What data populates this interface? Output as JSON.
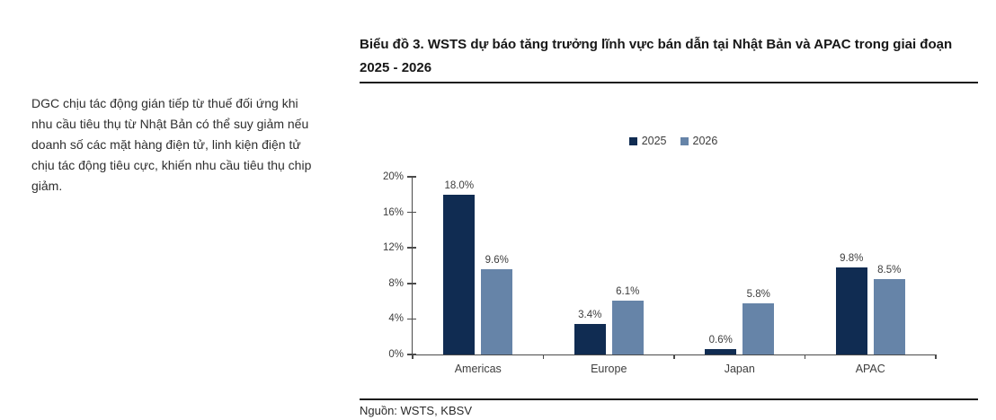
{
  "page": {
    "background": "#ffffff"
  },
  "sidenote": {
    "text": "DGC chịu tác động gián tiếp từ thuế đối ứng khi nhu cầu tiêu thụ từ Nhật Bản có thể suy giảm nếu doanh số các mặt hàng điện tử, linh kiện điện tử chịu tác động tiêu cực, khiến nhu cầu tiêu thụ chip giảm."
  },
  "figure": {
    "title": "Biểu đồ 3. WSTS dự báo tăng trưởng lĩnh vực bán dẫn tại Nhật Bản và APAC trong giai đoạn 2025 - 2026",
    "source": "Nguồn: WSTS, KBSV"
  },
  "chart_data": {
    "type": "bar",
    "title": "Biểu đồ 3. WSTS dự báo tăng trưởng lĩnh vực bán dẫn tại Nhật Bản và APAC trong giai đoạn 2025 - 2026",
    "categories": [
      "Americas",
      "Europe",
      "Japan",
      "APAC"
    ],
    "series": [
      {
        "name": "2025",
        "color": "#102C52",
        "values": [
          18.0,
          3.4,
          0.6,
          9.8
        ],
        "labels": [
          "18.0%",
          "3.4%",
          "0.6%",
          "9.8%"
        ]
      },
      {
        "name": "2026",
        "color": "#6684A8",
        "values": [
          9.6,
          6.1,
          5.8,
          8.5
        ],
        "labels": [
          "9.6%",
          "6.1%",
          "5.8%",
          "8.5%"
        ]
      }
    ],
    "xlabel": "",
    "ylabel": "",
    "ylim": [
      0,
      20
    ],
    "yticks": [
      {
        "value": 0,
        "label": "0%"
      },
      {
        "value": 4,
        "label": "4%"
      },
      {
        "value": 8,
        "label": "8%"
      },
      {
        "value": 12,
        "label": "12%"
      },
      {
        "value": 16,
        "label": "16%"
      },
      {
        "value": 20,
        "label": "20%"
      }
    ],
    "grid": false,
    "legend_position": "top-center",
    "axis_color": "#4a4a4a",
    "label_color": "#3d3d3d"
  }
}
